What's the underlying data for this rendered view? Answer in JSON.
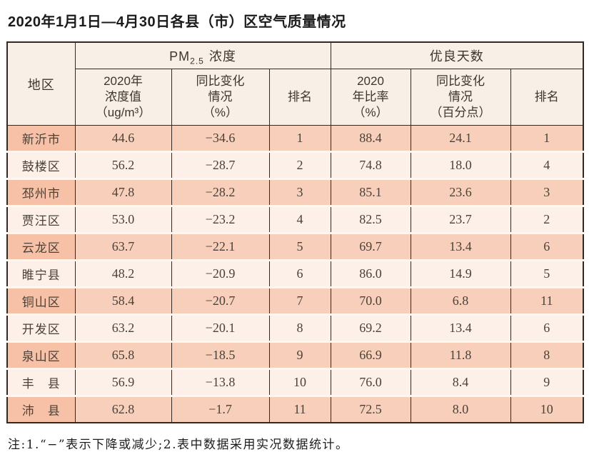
{
  "title": "2020年1月1日—4月30日各县（市）区空气质量情况",
  "table": {
    "region_label": "地区",
    "pm_group": {
      "prefix": "PM",
      "sub": "2.5",
      "suffix": "浓度"
    },
    "good_days_label": "优良天数",
    "columns": [
      "2020年\n浓度值\n（ug/m³）",
      "同比变化\n情况\n（%）",
      "排名",
      "2020\n年比率\n（%）",
      "同比变化\n情况\n（百分点）",
      "排名"
    ],
    "rows": [
      [
        "新沂市",
        "44.6",
        "−34.6",
        "1",
        "88.4",
        "24.1",
        "1"
      ],
      [
        "鼓楼区",
        "56.2",
        "−28.7",
        "2",
        "74.8",
        "18.0",
        "4"
      ],
      [
        "邳州市",
        "47.8",
        "−28.2",
        "3",
        "85.1",
        "23.6",
        "3"
      ],
      [
        "贾汪区",
        "53.0",
        "−23.2",
        "4",
        "82.5",
        "23.7",
        "2"
      ],
      [
        "云龙区",
        "63.7",
        "−22.1",
        "5",
        "69.7",
        "13.4",
        "6"
      ],
      [
        "睢宁县",
        "48.2",
        "−20.9",
        "6",
        "86.0",
        "14.9",
        "5"
      ],
      [
        "铜山区",
        "58.4",
        "−20.7",
        "7",
        "70.0",
        "6.8",
        "11"
      ],
      [
        "开发区",
        "63.2",
        "−20.1",
        "8",
        "69.2",
        "13.4",
        "6"
      ],
      [
        "泉山区",
        "65.8",
        "−18.5",
        "9",
        "66.9",
        "11.8",
        "8"
      ],
      [
        "丰　县",
        "56.9",
        "−13.8",
        "10",
        "76.0",
        "8.4",
        "9"
      ],
      [
        "沛　县",
        "62.8",
        "−1.7",
        "11",
        "72.5",
        "8.0",
        "10"
      ]
    ]
  },
  "footnote": "注:1.“−”表示下降或减少;2.表中数据采用实况数据统计。",
  "colors": {
    "border": "#35281f",
    "header_bg": "#f8efe6",
    "row_band": "#f8cfba",
    "row_band_region": "#f6c1a7",
    "row_lite": "#fcf0e8",
    "gap": "#fdf8f2",
    "text": "#4b4138"
  }
}
